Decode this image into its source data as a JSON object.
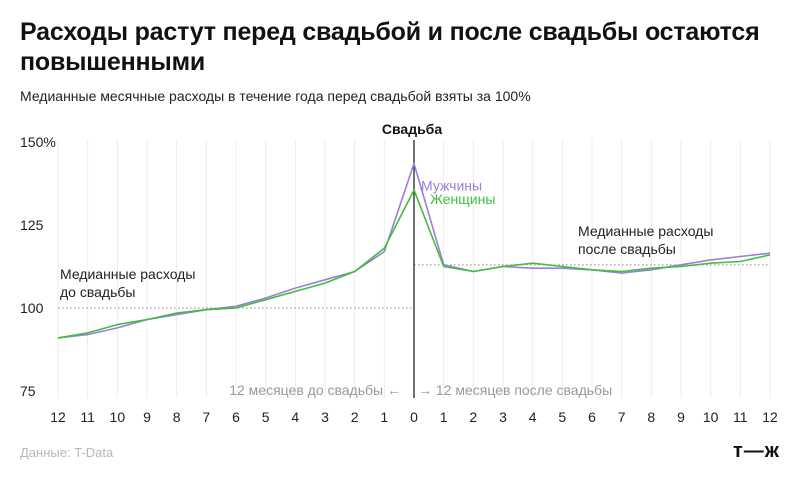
{
  "title": "Расходы растут перед свадьбой и после свадьбы остаются повышенными",
  "subtitle": "Медианные месячные расходы в течение года перед свадьбой взяты за 100%",
  "source": "Данные: T-Data",
  "logo": "т—ж",
  "chart_data": {
    "type": "line",
    "ylim": [
      75,
      150
    ],
    "yticks": [
      {
        "value": 150,
        "label": "150%"
      },
      {
        "value": 125,
        "label": "125"
      },
      {
        "value": 100,
        "label": "100"
      },
      {
        "value": 75,
        "label": "75"
      }
    ],
    "x": [
      -12,
      -11,
      -10,
      -9,
      -8,
      -7,
      -6,
      -5,
      -4,
      -3,
      -2,
      -1,
      0,
      1,
      2,
      3,
      4,
      5,
      6,
      7,
      8,
      9,
      10,
      11,
      12
    ],
    "x_tick_labels": [
      "12",
      "11",
      "10",
      "9",
      "8",
      "7",
      "6",
      "5",
      "4",
      "3",
      "2",
      "1",
      "0",
      "1",
      "2",
      "3",
      "4",
      "5",
      "6",
      "7",
      "8",
      "9",
      "10",
      "11",
      "12"
    ],
    "series": [
      {
        "name": "Мужчины",
        "color": "#9b7fd9",
        "values": [
          91,
          92,
          94,
          96.5,
          98,
          99.5,
          100.5,
          103,
          106,
          108.5,
          111,
          117,
          143.5,
          113,
          111,
          112.5,
          112,
          112,
          111.5,
          110.5,
          111.5,
          113,
          114.5,
          115.5,
          116.5
        ]
      },
      {
        "name": "Женщины",
        "color": "#3fbf3f",
        "values": [
          91,
          92.5,
          95,
          96.5,
          98.5,
          99.5,
          100,
          102.5,
          105,
          107.5,
          111,
          118,
          135.5,
          112.5,
          111,
          112.5,
          113.5,
          112.5,
          111.5,
          111,
          112,
          112.5,
          113.5,
          114,
          116
        ]
      }
    ],
    "event_label": "Свадьба",
    "reference_lines": [
      {
        "value": 100,
        "x_from": -12,
        "x_to": 0,
        "label_lines": [
          "Медианные расходы",
          "до свадьбы"
        ]
      },
      {
        "value": 113,
        "x_from": 0,
        "x_to": 12,
        "label_lines": [
          "Медианные расходы",
          "после свадьбы"
        ]
      }
    ],
    "period_labels": {
      "before": "12 месяцев до свадьбы ←",
      "after": "→ 12 месяцев после свадьбы"
    },
    "grid": true
  }
}
